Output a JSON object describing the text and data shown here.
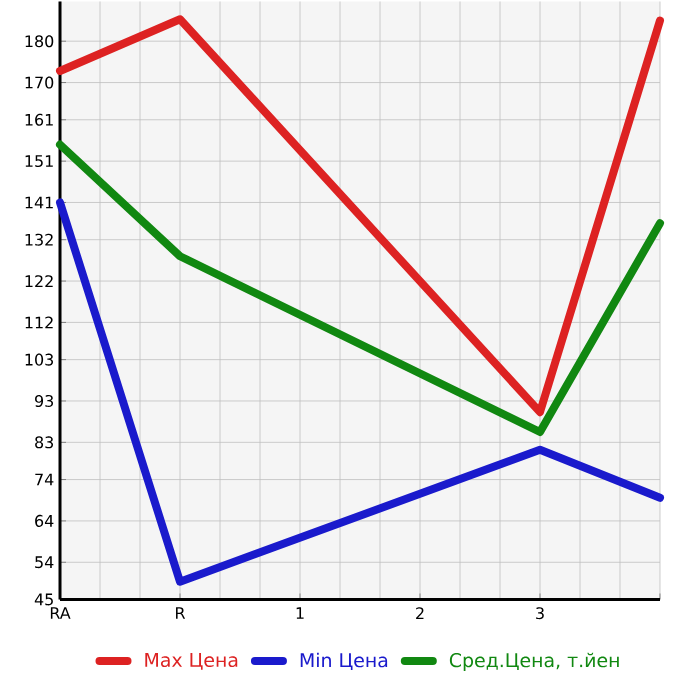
{
  "chart_data": {
    "type": "line",
    "categories": [
      "RA",
      "R",
      "1",
      "2",
      "3",
      null
    ],
    "series": [
      {
        "name": "Max Цена",
        "color": "#dd2222",
        "values": [
          172.8,
          185.3,
          null,
          null,
          90.3,
          185
        ]
      },
      {
        "name": "Min Цена",
        "color": "#1a1acc",
        "values": [
          141,
          49.3,
          null,
          null,
          81.2,
          69.6
        ]
      },
      {
        "name": "Сред.Цена, т.йен",
        "color": "#118811",
        "values": [
          155,
          128,
          null,
          null,
          85.5,
          136
        ]
      }
    ],
    "ylim": [
      45,
      189.6
    ],
    "yticks": [
      45,
      54,
      64,
      74,
      83,
      93,
      103,
      112,
      122,
      132,
      141,
      151,
      161,
      170,
      180
    ],
    "grid": true,
    "legend": "bottom",
    "marker": "none",
    "line_style": "solid"
  }
}
